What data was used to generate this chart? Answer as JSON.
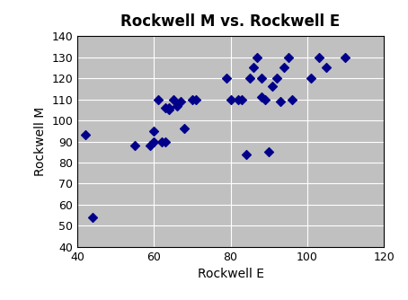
{
  "title": "Rockwell M vs. Rockwell E",
  "xlabel": "Rockwell E",
  "ylabel": "Rockwell M",
  "xlim": [
    40,
    120
  ],
  "ylim": [
    40,
    140
  ],
  "xticks": [
    40,
    60,
    80,
    100,
    120
  ],
  "yticks": [
    40,
    50,
    60,
    70,
    80,
    90,
    100,
    110,
    120,
    130,
    140
  ],
  "scatter_color": "#00008B",
  "background_color": "#C0C0C0",
  "marker": "D",
  "marker_size": 5,
  "x": [
    42,
    44,
    55,
    59,
    60,
    60,
    61,
    62,
    63,
    63,
    64,
    64,
    65,
    66,
    67,
    68,
    70,
    71,
    79,
    80,
    82,
    83,
    84,
    85,
    86,
    87,
    88,
    88,
    89,
    90,
    91,
    92,
    93,
    94,
    95,
    96,
    101,
    103,
    105,
    110
  ],
  "y": [
    93,
    54,
    88,
    88,
    95,
    90,
    110,
    90,
    90,
    106,
    105,
    106,
    110,
    107,
    109,
    96,
    110,
    110,
    120,
    110,
    110,
    110,
    84,
    120,
    125,
    130,
    120,
    111,
    110,
    85,
    116,
    120,
    109,
    125,
    130,
    110,
    120,
    130,
    125,
    130
  ]
}
